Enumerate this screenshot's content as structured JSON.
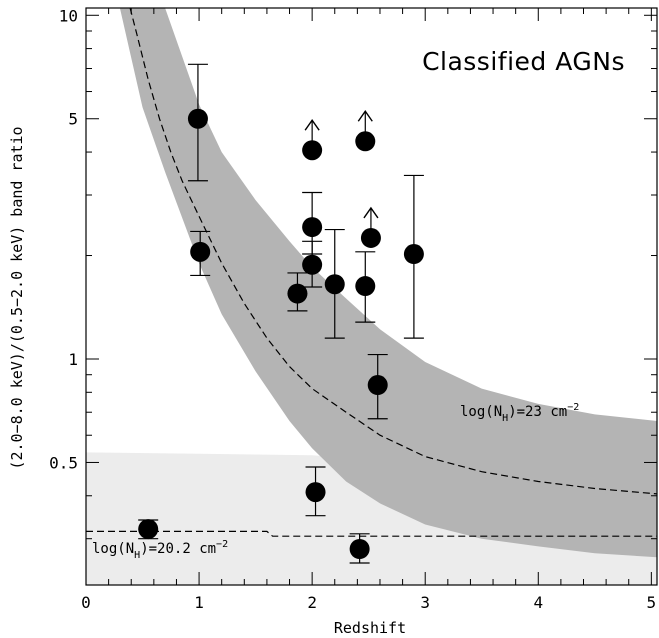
{
  "chart_data": {
    "type": "scatter",
    "title": "Classified AGNs",
    "xlabel": "Redshift",
    "ylabel": "(2.0−8.0 keV)/(0.5−2.0 keV) band ratio",
    "xlim": [
      0,
      5.05
    ],
    "ylim": [
      0.22,
      10.5
    ],
    "y_scale": "log",
    "x_ticks": [
      "0",
      "1",
      "2",
      "3",
      "4",
      "5"
    ],
    "x_tick_values": [
      0,
      1,
      2,
      3,
      4,
      5
    ],
    "y_ticks": [
      "10",
      "5",
      "1",
      "0.5"
    ],
    "y_tick_values": [
      10,
      5,
      1,
      0.5
    ],
    "grid": false,
    "legend": "none",
    "colors": {
      "points": "#000000",
      "dark_band": "#b4b4b4",
      "light_band": "#ececec",
      "curves": "#000000"
    },
    "annotations": [
      {
        "id": "nh_high",
        "prefix": "log(N",
        "sub": "H",
        "suffix": ")=23 cm",
        "sup": "−2"
      },
      {
        "id": "nh_low",
        "prefix": "log(N",
        "sub": "H",
        "suffix": ")=20.2 cm",
        "sup": "−2"
      }
    ],
    "points": [
      {
        "x": 0.55,
        "y": 0.32,
        "y_low": 0.3,
        "y_high": 0.34,
        "lower_limit": false
      },
      {
        "x": 0.99,
        "y": 5.0,
        "y_low": 3.3,
        "y_high": 7.2,
        "lower_limit": false
      },
      {
        "x": 1.01,
        "y": 2.05,
        "y_low": 1.75,
        "y_high": 2.35,
        "lower_limit": false
      },
      {
        "x": 1.87,
        "y": 1.55,
        "y_low": 1.38,
        "y_high": 1.78,
        "lower_limit": false
      },
      {
        "x": 2.0,
        "y": 4.05,
        "lower_limit": true
      },
      {
        "x": 2.0,
        "y": 2.42,
        "y_low": 2.02,
        "y_high": 3.05,
        "lower_limit": false
      },
      {
        "x": 2.0,
        "y": 1.88,
        "y_low": 1.62,
        "y_high": 2.2,
        "lower_limit": false
      },
      {
        "x": 2.03,
        "y": 0.41,
        "y_low": 0.35,
        "y_high": 0.485,
        "lower_limit": false
      },
      {
        "x": 2.2,
        "y": 1.65,
        "y_low": 1.15,
        "y_high": 2.38,
        "lower_limit": false
      },
      {
        "x": 2.42,
        "y": 0.28,
        "y_low": 0.255,
        "y_high": 0.31,
        "lower_limit": false
      },
      {
        "x": 2.47,
        "y": 4.3,
        "lower_limit": true
      },
      {
        "x": 2.47,
        "y": 1.63,
        "y_low": 1.28,
        "y_high": 2.05,
        "lower_limit": false
      },
      {
        "x": 2.52,
        "y": 2.25,
        "lower_limit": true
      },
      {
        "x": 2.58,
        "y": 0.84,
        "y_low": 0.67,
        "y_high": 1.03,
        "lower_limit": false
      },
      {
        "x": 2.9,
        "y": 2.02,
        "y_low": 1.15,
        "y_high": 3.42,
        "lower_limit": false
      }
    ],
    "dashed_curve_nh23": {
      "x": [
        0.39,
        0.45,
        0.55,
        0.65,
        0.75,
        0.85,
        1.0,
        1.2,
        1.4,
        1.6,
        1.8,
        2.0,
        2.3,
        2.6,
        3.0,
        3.5,
        4.0,
        4.5,
        5.05
      ],
      "y": [
        10.5,
        8.8,
        6.5,
        5.0,
        4.0,
        3.3,
        2.6,
        1.9,
        1.45,
        1.15,
        0.95,
        0.82,
        0.7,
        0.6,
        0.52,
        0.47,
        0.44,
        0.42,
        0.405
      ]
    },
    "dark_band": {
      "x": [
        0.3,
        0.5,
        0.7,
        1.0,
        1.2,
        1.5,
        1.8,
        2.0,
        2.3,
        2.6,
        3.0,
        3.5,
        4.0,
        4.5,
        5.05
      ],
      "y_upper": [
        10.5,
        10.5,
        10.5,
        5.5,
        4.0,
        2.9,
        2.2,
        1.85,
        1.5,
        1.22,
        0.98,
        0.82,
        0.74,
        0.69,
        0.66
      ],
      "y_lower": [
        10.5,
        5.4,
        3.5,
        1.9,
        1.35,
        0.92,
        0.66,
        0.55,
        0.44,
        0.38,
        0.33,
        0.3,
        0.285,
        0.272,
        0.265
      ]
    },
    "light_band": {
      "x": [
        0.0,
        1.0,
        2.0,
        2.5,
        3.0,
        3.5,
        4.0,
        4.5,
        5.05
      ],
      "y_upper": [
        0.535,
        0.53,
        0.525,
        0.51,
        0.49,
        0.48,
        0.475,
        0.47,
        0.47
      ],
      "y_lower": [
        0.22,
        0.22,
        0.22,
        0.22,
        0.22,
        0.22,
        0.22,
        0.22,
        0.22
      ]
    },
    "dashed_curve_nh20": {
      "x": [
        0.0,
        1.6,
        1.65,
        5.05
      ],
      "y": [
        0.315,
        0.315,
        0.305,
        0.305
      ]
    }
  }
}
